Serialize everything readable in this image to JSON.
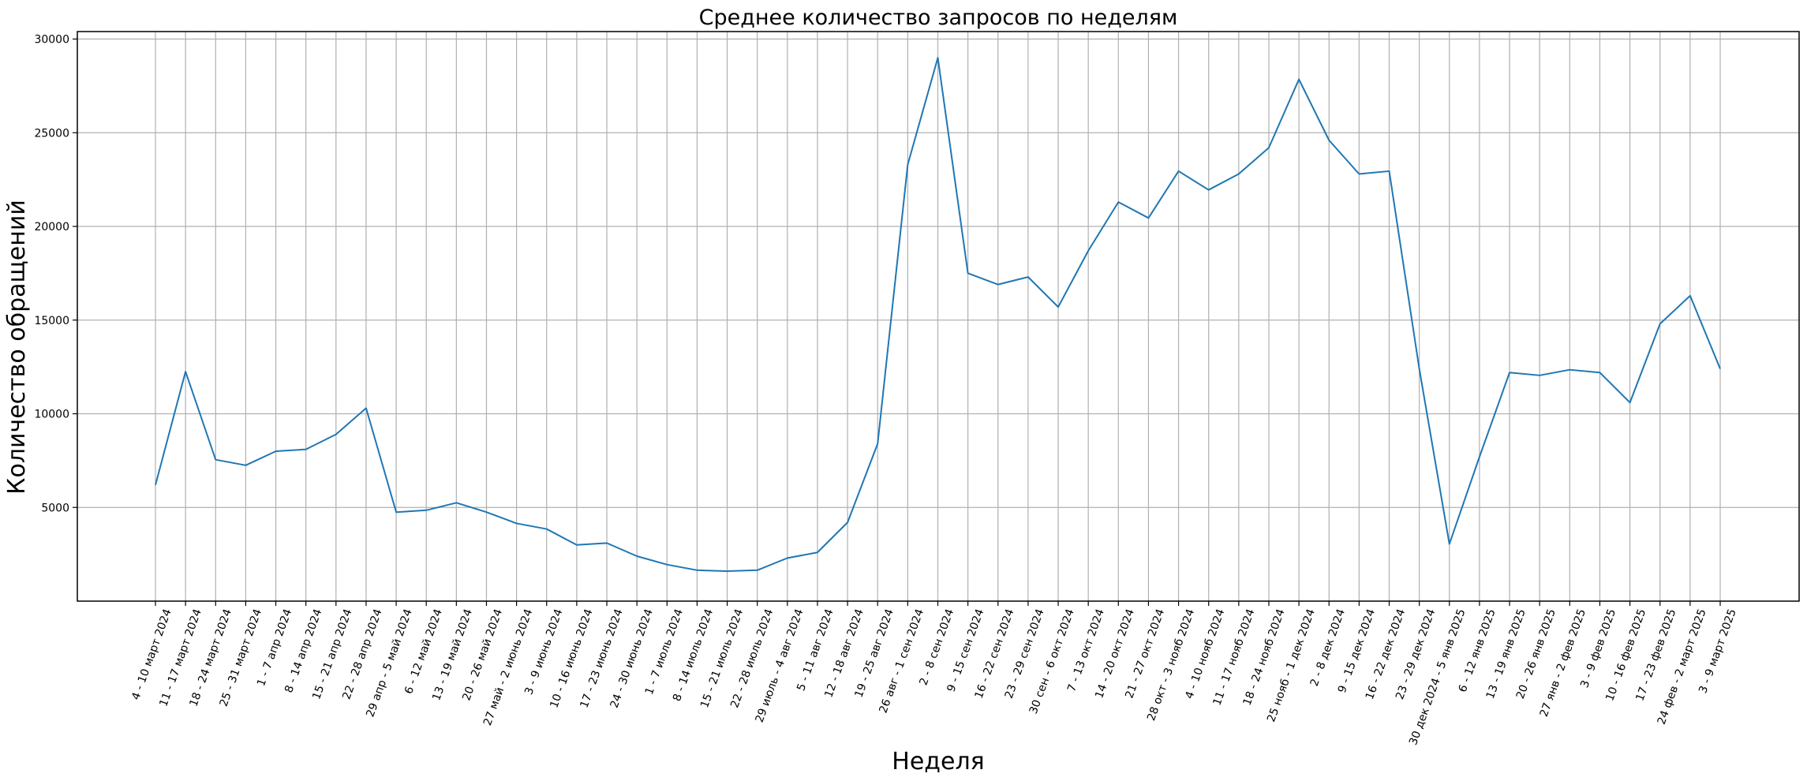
{
  "chart_data": {
    "type": "line",
    "title": "Среднее количество запросов по неделям",
    "xlabel": "Неделя",
    "ylabel": "Количество обращений",
    "grid": true,
    "ylim": [
      0,
      30400
    ],
    "yticks": [
      5000,
      10000,
      15000,
      20000,
      25000,
      30000
    ],
    "line_color": "#1f77b4",
    "grid_color": "#b0b0b0",
    "categories": [
      "4 - 10 март 2024",
      "11 - 17 март 2024",
      "18 - 24 март 2024",
      "25 - 31 март 2024",
      "1 - 7 апр 2024",
      "8 - 14 апр 2024",
      "15 - 21 апр 2024",
      "22 - 28 апр 2024",
      "29 апр - 5 май 2024",
      "6 - 12 май 2024",
      "13 - 19 май 2024",
      "20 - 26 май 2024",
      "27 май - 2 июнь 2024",
      "3 - 9 июнь 2024",
      "10 - 16 июнь 2024",
      "17 - 23 июнь 2024",
      "24 - 30 июнь 2024",
      "1 - 7 июль 2024",
      "8 - 14 июль 2024",
      "15 - 21 июль 2024",
      "22 - 28 июль 2024",
      "29 июль - 4 авг 2024",
      "5 - 11 авг 2024",
      "12 - 18 авг 2024",
      "19 - 25 авг 2024",
      "26 авг - 1 сен 2024",
      "2 - 8 сен 2024",
      "9 - 15 сен 2024",
      "16 - 22 сен 2024",
      "23 - 29 сен 2024",
      "30 сен - 6 окт 2024",
      "7 - 13 окт 2024",
      "14 - 20 окт 2024",
      "21 - 27 окт 2024",
      "28 окт - 3 нояб 2024",
      "4 - 10 нояб 2024",
      "11 - 17 нояб 2024",
      "18 - 24 нояб 2024",
      "25 нояб - 1 дек 2024",
      "2 - 8 дек 2024",
      "9 - 15 дек 2024",
      "16 - 22 дек 2024",
      "23 - 29 дек 2024",
      "30 дек 2024 - 5 янв 2025",
      "6 - 12 янв 2025",
      "13 - 19 янв 2025",
      "20 - 26 янв 2025",
      "27 янв - 2 фев 2025",
      "3 - 9 фев 2025",
      "10 - 16 фев 2025",
      "17 - 23 фев 2025",
      "24 фев - 2 март 2025",
      "3 - 9 март 2025"
    ],
    "series": [
      {
        "values": [
          6200,
          12250,
          7550,
          7250,
          8000,
          8100,
          8900,
          10300,
          4750,
          4850,
          5250,
          4750,
          4150,
          3850,
          3000,
          3100,
          2400,
          1950,
          1650,
          1600,
          1650,
          2300,
          2600,
          4200,
          8400,
          23300,
          29000,
          17500,
          16900,
          17300,
          15700,
          18700,
          21300,
          20450,
          22950,
          21950,
          22800,
          24200,
          27850,
          24600,
          22800,
          22950,
          12400,
          3050,
          7700,
          12200,
          12050,
          12350,
          12200,
          10600,
          14800,
          16300,
          12400
        ]
      }
    ]
  }
}
